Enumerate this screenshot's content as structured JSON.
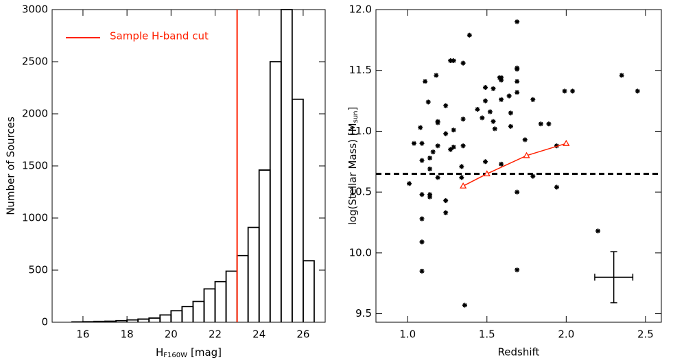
{
  "chart_data": [
    {
      "type": "histogram",
      "xlabel": "H",
      "xlabel_sub": "F160W",
      "xlabel_unit": "[mag]",
      "ylabel": "Number of Sources",
      "bins": [
        15.5,
        16,
        16.5,
        17,
        17.5,
        18,
        18.5,
        19,
        19.5,
        20,
        20.5,
        21,
        21.5,
        22,
        22.5,
        23,
        23.5,
        24,
        24.5,
        25,
        25.5,
        26,
        26.5
      ],
      "values": [
        3,
        5,
        8,
        10,
        15,
        22,
        30,
        40,
        70,
        110,
        150,
        200,
        320,
        390,
        490,
        640,
        910,
        1460,
        2500,
        3000,
        2140,
        590
      ],
      "color": "#000000",
      "cut": {
        "name": "Sample H-band cut",
        "value": 23,
        "color": "#ff2000"
      },
      "xlim": [
        14.6,
        27
      ],
      "ylim": [
        0,
        3000
      ],
      "xticks": [
        16,
        18,
        20,
        22,
        24,
        26
      ],
      "yticks": [
        0,
        500,
        1000,
        1500,
        2000,
        2500,
        3000
      ]
    },
    {
      "type": "scatter",
      "xlabel": "Redshift",
      "ylabel": "log(Stellar Mass) [M",
      "ylabel_sub": "sun",
      "ylabel_end": "]",
      "series": [
        {
          "color": "#000000",
          "x": [
            1.01,
            1.04,
            1.08,
            1.09,
            1.09,
            1.09,
            1.09,
            1.09,
            1.09,
            1.11,
            1.13,
            1.14,
            1.14,
            1.14,
            1.14,
            1.16,
            1.18,
            1.19,
            1.19,
            1.19,
            1.19,
            1.24,
            1.24,
            1.24,
            1.24,
            1.27,
            1.29,
            1.27,
            1.29,
            1.29,
            1.34,
            1.34,
            1.35,
            1.35,
            1.35,
            1.36,
            1.39,
            1.44,
            1.47,
            1.49,
            1.49,
            1.49,
            1.52,
            1.54,
            1.54,
            1.55,
            1.58,
            1.59,
            1.59,
            1.59,
            1.59,
            1.64,
            1.65,
            1.65,
            1.69,
            1.69,
            1.69,
            1.69,
            1.69,
            1.69,
            1.69,
            1.74,
            1.79,
            1.79,
            1.84,
            1.89,
            1.94,
            1.94,
            1.99,
            2.04,
            2.2,
            2.35,
            2.45
          ],
          "values": [
            10.57,
            10.9,
            11.03,
            10.9,
            10.76,
            10.48,
            10.28,
            10.09,
            9.85,
            11.41,
            11.24,
            10.78,
            10.69,
            10.48,
            10.46,
            10.83,
            11.46,
            11.08,
            11.07,
            10.88,
            10.62,
            10.98,
            11.21,
            10.43,
            10.33,
            11.58,
            11.58,
            10.85,
            10.87,
            11.01,
            10.71,
            10.62,
            11.56,
            11.1,
            10.88,
            9.57,
            11.79,
            11.18,
            11.11,
            11.36,
            11.25,
            10.75,
            11.16,
            11.35,
            11.08,
            11.02,
            11.44,
            11.26,
            11.44,
            11.42,
            10.73,
            11.29,
            11.04,
            11.15,
            11.9,
            11.52,
            11.51,
            11.41,
            11.32,
            10.5,
            9.86,
            10.93,
            11.26,
            10.63,
            11.06,
            11.06,
            10.88,
            10.54,
            11.33,
            11.33,
            10.18,
            11.46,
            11.33
          ]
        },
        {
          "type": "line",
          "color": "#ff2000",
          "x": [
            1.35,
            1.5,
            1.75,
            2.0
          ],
          "values": [
            10.55,
            10.65,
            10.8,
            10.9
          ]
        }
      ],
      "hline": 10.65,
      "errorbar": {
        "x": 2.3,
        "y": 9.8,
        "xerr": 0.12,
        "yerr": 0.21
      },
      "xlim": [
        0.8,
        2.6
      ],
      "ylim": [
        9.43,
        12.0
      ],
      "xticks": [
        {
          "value": 1,
          "label": "1.0"
        },
        {
          "value": 1.5,
          "label": "1.5"
        },
        {
          "value": 2,
          "label": "2.0"
        },
        {
          "value": 2.5,
          "label": "2.5"
        }
      ],
      "yticks": [
        {
          "value": 9.5,
          "label": "9.5"
        },
        {
          "value": 10,
          "label": "10.0"
        },
        {
          "value": 10.5,
          "label": "10.5"
        },
        {
          "value": 11,
          "label": "11.0"
        },
        {
          "value": 11.5,
          "label": "11.5"
        },
        {
          "value": 12,
          "label": "12.0"
        }
      ]
    }
  ]
}
